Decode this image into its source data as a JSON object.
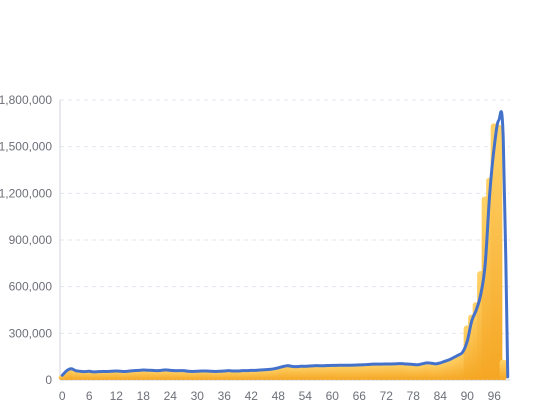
{
  "chart_data": {
    "type": "bar",
    "title": "",
    "xlabel": "",
    "ylabel": "",
    "x": [
      0,
      1,
      2,
      3,
      4,
      5,
      6,
      7,
      8,
      9,
      10,
      11,
      12,
      13,
      14,
      15,
      16,
      17,
      18,
      19,
      20,
      21,
      22,
      23,
      24,
      25,
      26,
      27,
      28,
      29,
      30,
      31,
      32,
      33,
      34,
      35,
      36,
      37,
      38,
      39,
      40,
      41,
      42,
      43,
      44,
      45,
      46,
      47,
      48,
      49,
      50,
      51,
      52,
      53,
      54,
      55,
      56,
      57,
      58,
      59,
      60,
      61,
      62,
      63,
      64,
      65,
      66,
      67,
      68,
      69,
      70,
      71,
      72,
      73,
      74,
      75,
      76,
      77,
      78,
      79,
      80,
      81,
      82,
      83,
      84,
      85,
      86,
      87,
      88,
      89,
      90,
      91,
      92,
      93,
      94,
      95,
      96,
      97,
      98,
      99
    ],
    "x_tick_labels": [
      "0",
      "6",
      "12",
      "18",
      "24",
      "30",
      "36",
      "42",
      "48",
      "54",
      "60",
      "66",
      "72",
      "78",
      "84",
      "90",
      "96"
    ],
    "ylim": [
      0,
      1800000
    ],
    "y_ticks": [
      0,
      300000,
      600000,
      900000,
      1200000,
      1500000,
      1800000
    ],
    "y_tick_labels": [
      "0",
      "300,000",
      "600,000",
      "900,000",
      "1,200,000",
      "1,500,000",
      "1,800,000"
    ],
    "grid": true,
    "legend": "none",
    "series": [
      {
        "kind": "bar",
        "color_top": "#ffd36a",
        "color_bottom": "#f5a623",
        "values": [
          30000,
          60000,
          72000,
          60000,
          56000,
          54000,
          56000,
          52000,
          54000,
          55000,
          55000,
          56000,
          58000,
          56000,
          55000,
          58000,
          60000,
          62000,
          64000,
          63000,
          62000,
          60000,
          62000,
          65000,
          62000,
          60000,
          60000,
          60000,
          56000,
          55000,
          56000,
          58000,
          58000,
          56000,
          55000,
          56000,
          58000,
          60000,
          58000,
          58000,
          60000,
          60000,
          62000,
          62000,
          64000,
          66000,
          68000,
          72000,
          78000,
          86000,
          92000,
          88000,
          86000,
          88000,
          88000,
          90000,
          92000,
          92000,
          92000,
          93000,
          94000,
          94000,
          95000,
          95000,
          95000,
          96000,
          97000,
          98000,
          100000,
          102000,
          102000,
          102000,
          103000,
          103000,
          104000,
          105000,
          104000,
          102000,
          100000,
          98000,
          104000,
          110000,
          108000,
          104000,
          110000,
          120000,
          130000,
          145000,
          160000,
          180000,
          350000,
          420000,
          500000,
          700000,
          1180000,
          1300000,
          1650000,
          1640000,
          130000,
          0
        ]
      },
      {
        "kind": "line",
        "color": "#4472ca",
        "values": [
          30000,
          60000,
          72000,
          60000,
          56000,
          54000,
          56000,
          52000,
          54000,
          55000,
          55000,
          56000,
          58000,
          56000,
          55000,
          58000,
          60000,
          62000,
          64000,
          63000,
          62000,
          60000,
          62000,
          65000,
          62000,
          60000,
          60000,
          60000,
          56000,
          55000,
          56000,
          58000,
          58000,
          56000,
          55000,
          56000,
          58000,
          60000,
          58000,
          58000,
          60000,
          60000,
          62000,
          62000,
          64000,
          66000,
          68000,
          72000,
          78000,
          86000,
          92000,
          88000,
          86000,
          88000,
          88000,
          90000,
          92000,
          92000,
          92000,
          93000,
          94000,
          94000,
          95000,
          95000,
          95000,
          96000,
          97000,
          98000,
          100000,
          102000,
          102000,
          102000,
          103000,
          103000,
          104000,
          105000,
          104000,
          102000,
          100000,
          98000,
          104000,
          110000,
          108000,
          104000,
          110000,
          120000,
          130000,
          145000,
          160000,
          180000,
          250000,
          380000,
          450000,
          550000,
          750000,
          1200000,
          1500000,
          1670000,
          1550000,
          20000
        ]
      }
    ]
  }
}
